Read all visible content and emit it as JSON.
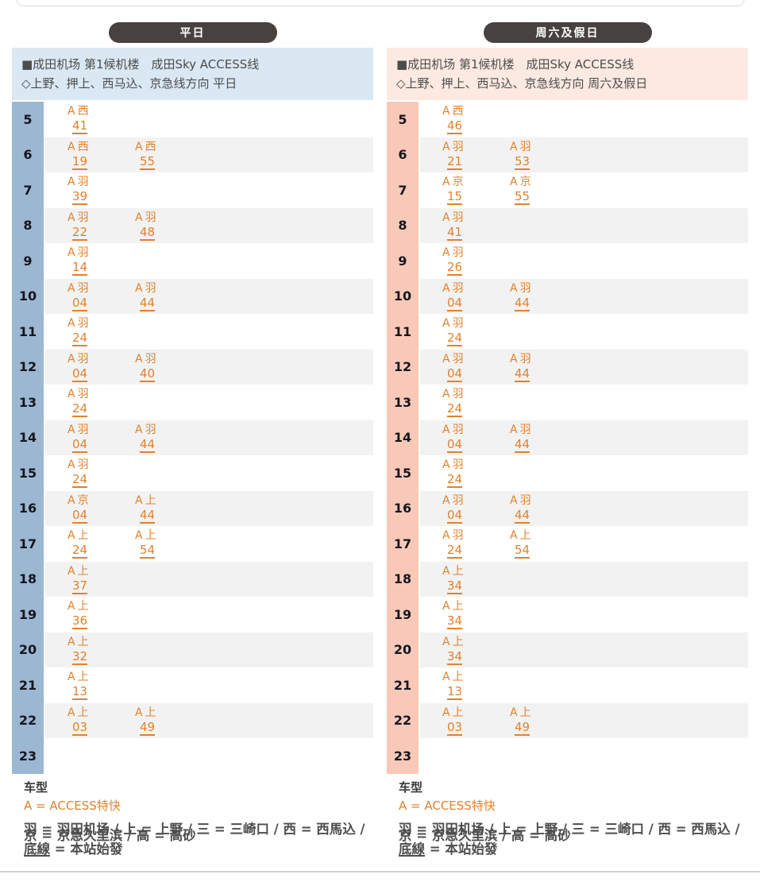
{
  "colors": {
    "pill_bg": "#474140",
    "train_text": "#e0822e",
    "stripe": "#f2f2f2",
    "weekday_hour_col": "#9cb7d2",
    "weekday_header_band": "#dae8f4",
    "weekend_hour_col": "#f9c9b8",
    "weekend_header_band": "#fce9e1"
  },
  "footer": {
    "title": "车型",
    "type_line": "A = ACCESS特快",
    "legend_line1": "羽 = 羽田机场 / 上 = 上野 / 三 = 三崎口 / 西 = 西馬込 /",
    "legend_line2": "京 = 京急久里滨 / 高 = 高砂",
    "underline_term": "底線",
    "underline_rest": " = 本站始發"
  },
  "panels": [
    {
      "id": "weekday",
      "pill_label": "平日",
      "theme": {
        "hour_col_bg": "#9cb7d2",
        "header_bg": "#dae8f4"
      },
      "header": {
        "line1": "■成田机场 第1候机楼　成田Sky ACCESS线",
        "line2": "◇上野、押上、西马込、京急线方向 平日"
      },
      "rows": [
        {
          "hour": "5",
          "trains": [
            {
              "type": "A",
              "dest": "西",
              "minute": "41"
            }
          ]
        },
        {
          "hour": "6",
          "trains": [
            {
              "type": "A",
              "dest": "西",
              "minute": "19"
            },
            {
              "type": "A",
              "dest": "西",
              "minute": "55"
            }
          ]
        },
        {
          "hour": "7",
          "trains": [
            {
              "type": "A",
              "dest": "羽",
              "minute": "39"
            }
          ]
        },
        {
          "hour": "8",
          "trains": [
            {
              "type": "A",
              "dest": "羽",
              "minute": "22"
            },
            {
              "type": "A",
              "dest": "羽",
              "minute": "48"
            }
          ]
        },
        {
          "hour": "9",
          "trains": [
            {
              "type": "A",
              "dest": "羽",
              "minute": "14"
            }
          ]
        },
        {
          "hour": "10",
          "trains": [
            {
              "type": "A",
              "dest": "羽",
              "minute": "04"
            },
            {
              "type": "A",
              "dest": "羽",
              "minute": "44"
            }
          ]
        },
        {
          "hour": "11",
          "trains": [
            {
              "type": "A",
              "dest": "羽",
              "minute": "24"
            }
          ]
        },
        {
          "hour": "12",
          "trains": [
            {
              "type": "A",
              "dest": "羽",
              "minute": "04"
            },
            {
              "type": "A",
              "dest": "羽",
              "minute": "40"
            }
          ]
        },
        {
          "hour": "13",
          "trains": [
            {
              "type": "A",
              "dest": "羽",
              "minute": "24"
            }
          ]
        },
        {
          "hour": "14",
          "trains": [
            {
              "type": "A",
              "dest": "羽",
              "minute": "04"
            },
            {
              "type": "A",
              "dest": "羽",
              "minute": "44"
            }
          ]
        },
        {
          "hour": "15",
          "trains": [
            {
              "type": "A",
              "dest": "羽",
              "minute": "24"
            }
          ]
        },
        {
          "hour": "16",
          "trains": [
            {
              "type": "A",
              "dest": "京",
              "minute": "04"
            },
            {
              "type": "A",
              "dest": "上",
              "minute": "44"
            }
          ]
        },
        {
          "hour": "17",
          "trains": [
            {
              "type": "A",
              "dest": "上",
              "minute": "24"
            },
            {
              "type": "A",
              "dest": "上",
              "minute": "54"
            }
          ]
        },
        {
          "hour": "18",
          "trains": [
            {
              "type": "A",
              "dest": "上",
              "minute": "37"
            }
          ]
        },
        {
          "hour": "19",
          "trains": [
            {
              "type": "A",
              "dest": "上",
              "minute": "36"
            }
          ]
        },
        {
          "hour": "20",
          "trains": [
            {
              "type": "A",
              "dest": "上",
              "minute": "32"
            }
          ]
        },
        {
          "hour": "21",
          "trains": [
            {
              "type": "A",
              "dest": "上",
              "minute": "13"
            }
          ]
        },
        {
          "hour": "22",
          "trains": [
            {
              "type": "A",
              "dest": "上",
              "minute": "03"
            },
            {
              "type": "A",
              "dest": "上",
              "minute": "49"
            }
          ]
        },
        {
          "hour": "23",
          "trains": []
        }
      ]
    },
    {
      "id": "weekend",
      "pill_label": "周六及假日",
      "theme": {
        "hour_col_bg": "#f9c9b8",
        "header_bg": "#fce9e1"
      },
      "header": {
        "line1": "■成田机场 第1候机楼　成田Sky ACCESS线",
        "line2": "◇上野、押上、西马込、京急线方向 周六及假日"
      },
      "rows": [
        {
          "hour": "5",
          "trains": [
            {
              "type": "A",
              "dest": "西",
              "minute": "46"
            }
          ]
        },
        {
          "hour": "6",
          "trains": [
            {
              "type": "A",
              "dest": "羽",
              "minute": "21"
            },
            {
              "type": "A",
              "dest": "羽",
              "minute": "53"
            }
          ]
        },
        {
          "hour": "7",
          "trains": [
            {
              "type": "A",
              "dest": "京",
              "minute": "15"
            },
            {
              "type": "A",
              "dest": "京",
              "minute": "55"
            }
          ]
        },
        {
          "hour": "8",
          "trains": [
            {
              "type": "A",
              "dest": "羽",
              "minute": "41"
            }
          ]
        },
        {
          "hour": "9",
          "trains": [
            {
              "type": "A",
              "dest": "羽",
              "minute": "26"
            }
          ]
        },
        {
          "hour": "10",
          "trains": [
            {
              "type": "A",
              "dest": "羽",
              "minute": "04"
            },
            {
              "type": "A",
              "dest": "羽",
              "minute": "44"
            }
          ]
        },
        {
          "hour": "11",
          "trains": [
            {
              "type": "A",
              "dest": "羽",
              "minute": "24"
            }
          ]
        },
        {
          "hour": "12",
          "trains": [
            {
              "type": "A",
              "dest": "羽",
              "minute": "04"
            },
            {
              "type": "A",
              "dest": "羽",
              "minute": "44"
            }
          ]
        },
        {
          "hour": "13",
          "trains": [
            {
              "type": "A",
              "dest": "羽",
              "minute": "24"
            }
          ]
        },
        {
          "hour": "14",
          "trains": [
            {
              "type": "A",
              "dest": "羽",
              "minute": "04"
            },
            {
              "type": "A",
              "dest": "羽",
              "minute": "44"
            }
          ]
        },
        {
          "hour": "15",
          "trains": [
            {
              "type": "A",
              "dest": "羽",
              "minute": "24"
            }
          ]
        },
        {
          "hour": "16",
          "trains": [
            {
              "type": "A",
              "dest": "羽",
              "minute": "04"
            },
            {
              "type": "A",
              "dest": "羽",
              "minute": "44"
            }
          ]
        },
        {
          "hour": "17",
          "trains": [
            {
              "type": "A",
              "dest": "羽",
              "minute": "24"
            },
            {
              "type": "A",
              "dest": "上",
              "minute": "54"
            }
          ]
        },
        {
          "hour": "18",
          "trains": [
            {
              "type": "A",
              "dest": "上",
              "minute": "34"
            }
          ]
        },
        {
          "hour": "19",
          "trains": [
            {
              "type": "A",
              "dest": "上",
              "minute": "34"
            }
          ]
        },
        {
          "hour": "20",
          "trains": [
            {
              "type": "A",
              "dest": "上",
              "minute": "34"
            }
          ]
        },
        {
          "hour": "21",
          "trains": [
            {
              "type": "A",
              "dest": "上",
              "minute": "13"
            }
          ]
        },
        {
          "hour": "22",
          "trains": [
            {
              "type": "A",
              "dest": "上",
              "minute": "03"
            },
            {
              "type": "A",
              "dest": "上",
              "minute": "49"
            }
          ]
        },
        {
          "hour": "23",
          "trains": []
        }
      ]
    }
  ]
}
